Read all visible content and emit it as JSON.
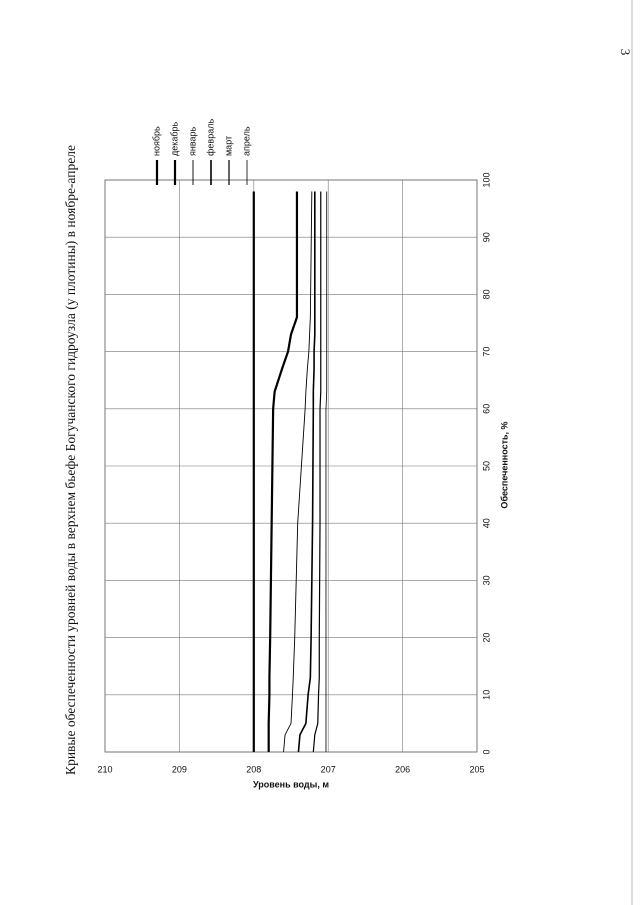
{
  "page_number": "3",
  "chart_data": {
    "type": "line",
    "title": "Кривые обеспеченности уровней воды в верхнем бьефе Богучанского гидроузла (у плотины) в ноябре-апреле",
    "x_label": "Обеспеченность, %",
    "y_label": "Уровень воды, м",
    "x": [
      0,
      3,
      5,
      10,
      13,
      20,
      40,
      60,
      63,
      67,
      70,
      73,
      76,
      98
    ],
    "series": [
      {
        "name": "ноябрь",
        "color": "#000000",
        "line_width": 2.2,
        "values": [
          208.0,
          208.0,
          208.0,
          208.0,
          208.0,
          208.0,
          208.0,
          208.0,
          208.0,
          208.0,
          208.0,
          208.0,
          208.0,
          208.0
        ]
      },
      {
        "name": "декабрь",
        "color": "#000000",
        "line_width": 2.2,
        "values": [
          207.8,
          207.8,
          207.8,
          207.79,
          207.79,
          207.78,
          207.76,
          207.74,
          207.72,
          207.62,
          207.54,
          207.5,
          207.42,
          207.42
        ]
      },
      {
        "name": "январь",
        "color": "#000000",
        "line_width": 0.9,
        "values": [
          207.6,
          207.58,
          207.5,
          207.48,
          207.47,
          207.45,
          207.41,
          207.31,
          207.3,
          207.28,
          207.26,
          207.25,
          207.24,
          207.22
        ]
      },
      {
        "name": "февраль",
        "color": "#000000",
        "line_width": 1.6,
        "values": [
          207.4,
          207.38,
          207.3,
          207.27,
          207.24,
          207.23,
          207.21,
          207.2,
          207.2,
          207.19,
          207.19,
          207.18,
          207.18,
          207.18
        ]
      },
      {
        "name": "март",
        "color": "#000000",
        "line_width": 1.2,
        "values": [
          207.2,
          207.18,
          207.14,
          207.13,
          207.12,
          207.12,
          207.11,
          207.11,
          207.1,
          207.1,
          207.1,
          207.1,
          207.1,
          207.1
        ]
      },
      {
        "name": "апрель",
        "color": "#000000",
        "line_width": 0.8,
        "values": [
          207.03,
          207.03,
          207.03,
          207.03,
          207.03,
          207.03,
          207.03,
          207.03,
          207.02,
          207.02,
          207.02,
          207.02,
          207.02,
          207.02
        ]
      }
    ],
    "xlim": [
      0,
      100
    ],
    "xticks": [
      0,
      10,
      20,
      30,
      40,
      50,
      60,
      70,
      80,
      90,
      100
    ],
    "ylim": [
      205,
      210
    ],
    "yticks": [
      205,
      206,
      207,
      208,
      209,
      210
    ],
    "grid": true
  }
}
